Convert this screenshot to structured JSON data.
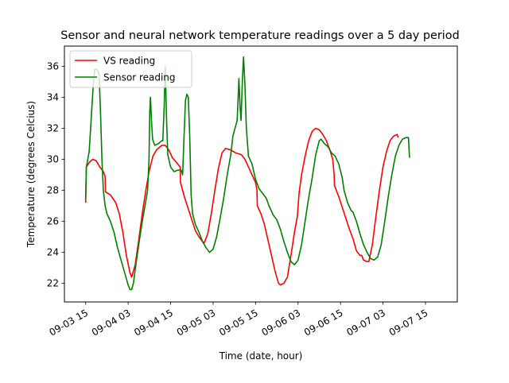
{
  "chart_data": {
    "type": "line",
    "title": "Sensor and neural network temperature readings over a 5 day period",
    "xlabel": "Time (date, hour)",
    "ylabel": "Temperature (degrees Celcius)",
    "x_unit": "hours",
    "xlim": [
      -6,
      105
    ],
    "ylim": [
      20.8,
      37.3
    ],
    "x_ticks": [
      {
        "value": 0,
        "label": "09-03 15"
      },
      {
        "value": 12,
        "label": "09-04 03"
      },
      {
        "value": 24,
        "label": "09-04 15"
      },
      {
        "value": 36,
        "label": "09-05 03"
      },
      {
        "value": 48,
        "label": "09-05 15"
      },
      {
        "value": 60,
        "label": "09-06 03"
      },
      {
        "value": 72,
        "label": "09-06 15"
      },
      {
        "value": 84,
        "label": "09-07 03"
      },
      {
        "value": 96,
        "label": "09-07 15"
      }
    ],
    "y_ticks": [
      22,
      24,
      26,
      28,
      30,
      32,
      34,
      36
    ],
    "grid": false,
    "legend_position": "top-left",
    "series": [
      {
        "name": "VS reading",
        "color": "#ff0000",
        "points": [
          [
            0.0,
            27.2
          ],
          [
            0.2,
            29.5
          ],
          [
            1.0,
            29.8
          ],
          [
            2.0,
            30.0
          ],
          [
            3.0,
            29.9
          ],
          [
            4.0,
            29.5
          ],
          [
            5.0,
            29.2
          ],
          [
            5.5,
            28.9
          ],
          [
            5.6,
            27.9
          ],
          [
            7.0,
            27.7
          ],
          [
            8.5,
            27.2
          ],
          [
            9.5,
            26.5
          ],
          [
            10.5,
            25.3
          ],
          [
            11.5,
            23.8
          ],
          [
            12.5,
            22.7
          ],
          [
            13.0,
            22.4
          ],
          [
            14.0,
            23.2
          ],
          [
            15.0,
            24.8
          ],
          [
            16.0,
            26.5
          ],
          [
            17.0,
            28.0
          ],
          [
            18.0,
            29.3
          ],
          [
            19.0,
            30.2
          ],
          [
            20.0,
            30.6
          ],
          [
            21.5,
            30.9
          ],
          [
            22.5,
            30.9
          ],
          [
            23.5,
            30.6
          ],
          [
            24.5,
            30.1
          ],
          [
            26.0,
            29.7
          ],
          [
            26.7,
            29.5
          ],
          [
            26.8,
            28.5
          ],
          [
            28.0,
            27.5
          ],
          [
            29.0,
            26.8
          ],
          [
            30.0,
            26.1
          ],
          [
            31.0,
            25.4
          ],
          [
            32.0,
            25.0
          ],
          [
            33.0,
            24.7
          ],
          [
            33.5,
            24.6
          ],
          [
            34.5,
            25.2
          ],
          [
            35.5,
            26.5
          ],
          [
            36.5,
            28.0
          ],
          [
            37.5,
            29.4
          ],
          [
            38.5,
            30.4
          ],
          [
            39.5,
            30.7
          ],
          [
            41.0,
            30.6
          ],
          [
            42.5,
            30.4
          ],
          [
            44.0,
            30.3
          ],
          [
            45.0,
            30.0
          ],
          [
            46.0,
            29.5
          ],
          [
            47.0,
            29.0
          ],
          [
            48.0,
            28.5
          ],
          [
            48.4,
            28.0
          ],
          [
            48.5,
            27.0
          ],
          [
            49.5,
            26.5
          ],
          [
            50.5,
            25.8
          ],
          [
            51.5,
            24.8
          ],
          [
            52.5,
            23.8
          ],
          [
            53.5,
            22.8
          ],
          [
            54.5,
            22.0
          ],
          [
            55.0,
            21.9
          ],
          [
            56.0,
            22.0
          ],
          [
            57.0,
            22.4
          ],
          [
            58.0,
            23.8
          ],
          [
            59.0,
            25.3
          ],
          [
            59.8,
            26.3
          ],
          [
            60.3,
            27.8
          ],
          [
            61.0,
            29.0
          ],
          [
            62.0,
            30.2
          ],
          [
            63.0,
            31.2
          ],
          [
            64.0,
            31.8
          ],
          [
            65.0,
            32.0
          ],
          [
            66.0,
            31.9
          ],
          [
            67.0,
            31.6
          ],
          [
            68.0,
            31.2
          ],
          [
            69.0,
            30.6
          ],
          [
            69.8,
            30.0
          ],
          [
            70.2,
            29.0
          ],
          [
            70.3,
            28.3
          ],
          [
            71.5,
            27.6
          ],
          [
            72.5,
            26.9
          ],
          [
            73.5,
            26.2
          ],
          [
            74.5,
            25.5
          ],
          [
            75.5,
            24.9
          ],
          [
            76.5,
            24.1
          ],
          [
            77.5,
            23.8
          ],
          [
            78.0,
            23.8
          ],
          [
            78.5,
            23.5
          ],
          [
            79.5,
            23.4
          ],
          [
            80.0,
            23.4
          ],
          [
            81.0,
            24.5
          ],
          [
            82.0,
            26.3
          ],
          [
            83.0,
            28.0
          ],
          [
            84.0,
            29.5
          ],
          [
            85.0,
            30.5
          ],
          [
            86.0,
            31.2
          ],
          [
            87.0,
            31.5
          ],
          [
            88.0,
            31.6
          ],
          [
            88.3,
            31.4
          ]
        ]
      },
      {
        "name": "Sensor reading",
        "color": "#008000",
        "points": [
          [
            0.0,
            27.4
          ],
          [
            0.2,
            29.5
          ],
          [
            1.0,
            30.5
          ],
          [
            1.8,
            33.5
          ],
          [
            2.2,
            35.0
          ],
          [
            2.6,
            35.8
          ],
          [
            3.2,
            35.8
          ],
          [
            3.8,
            35.5
          ],
          [
            4.2,
            33.0
          ],
          [
            4.6,
            30.0
          ],
          [
            5.0,
            28.0
          ],
          [
            5.5,
            27.0
          ],
          [
            6.0,
            26.5
          ],
          [
            7.0,
            26.0
          ],
          [
            8.0,
            25.3
          ],
          [
            9.0,
            24.3
          ],
          [
            10.0,
            23.5
          ],
          [
            11.0,
            22.7
          ],
          [
            12.0,
            21.9
          ],
          [
            12.5,
            21.6
          ],
          [
            13.0,
            21.6
          ],
          [
            13.5,
            22.0
          ],
          [
            14.0,
            22.9
          ],
          [
            15.0,
            24.5
          ],
          [
            16.0,
            26.0
          ],
          [
            17.0,
            27.3
          ],
          [
            17.5,
            28.0
          ],
          [
            17.9,
            30.0
          ],
          [
            18.1,
            33.0
          ],
          [
            18.3,
            34.0
          ],
          [
            18.6,
            32.5
          ],
          [
            18.9,
            31.3
          ],
          [
            19.5,
            30.9
          ],
          [
            20.5,
            31.0
          ],
          [
            21.5,
            31.2
          ],
          [
            21.8,
            31.2
          ],
          [
            22.2,
            33.5
          ],
          [
            22.5,
            36.0
          ],
          [
            22.8,
            33.0
          ],
          [
            23.2,
            30.3
          ],
          [
            24.0,
            29.5
          ],
          [
            25.0,
            29.2
          ],
          [
            26.0,
            29.3
          ],
          [
            27.0,
            29.3
          ],
          [
            27.4,
            29.0
          ],
          [
            27.8,
            31.5
          ],
          [
            28.2,
            33.8
          ],
          [
            28.6,
            34.2
          ],
          [
            29.0,
            34.0
          ],
          [
            29.4,
            31.5
          ],
          [
            29.8,
            27.7
          ],
          [
            30.2,
            26.5
          ],
          [
            31.0,
            25.8
          ],
          [
            32.0,
            25.3
          ],
          [
            33.0,
            24.7
          ],
          [
            34.0,
            24.3
          ],
          [
            35.0,
            24.0
          ],
          [
            36.0,
            24.2
          ],
          [
            37.0,
            25.0
          ],
          [
            38.0,
            26.2
          ],
          [
            39.0,
            27.5
          ],
          [
            40.0,
            29.0
          ],
          [
            41.0,
            30.3
          ],
          [
            41.6,
            31.5
          ],
          [
            42.2,
            32.0
          ],
          [
            42.8,
            32.5
          ],
          [
            43.0,
            33.5
          ],
          [
            43.3,
            35.2
          ],
          [
            43.6,
            33.5
          ],
          [
            43.9,
            32.5
          ],
          [
            44.3,
            35.2
          ],
          [
            44.6,
            36.6
          ],
          [
            45.0,
            34.8
          ],
          [
            45.4,
            32.0
          ],
          [
            46.0,
            30.2
          ],
          [
            47.0,
            29.7
          ],
          [
            48.0,
            28.7
          ],
          [
            49.0,
            28.1
          ],
          [
            50.0,
            27.8
          ],
          [
            51.0,
            27.5
          ],
          [
            51.8,
            27.0
          ],
          [
            53.0,
            26.4
          ],
          [
            54.0,
            26.1
          ],
          [
            55.0,
            25.5
          ],
          [
            56.0,
            24.7
          ],
          [
            57.0,
            24.0
          ],
          [
            58.0,
            23.4
          ],
          [
            59.0,
            23.2
          ],
          [
            60.0,
            23.5
          ],
          [
            61.0,
            24.5
          ],
          [
            62.0,
            26.0
          ],
          [
            63.0,
            27.5
          ],
          [
            64.0,
            28.8
          ],
          [
            65.0,
            30.3
          ],
          [
            66.0,
            31.2
          ],
          [
            66.5,
            31.3
          ],
          [
            67.5,
            31.0
          ],
          [
            68.5,
            30.8
          ],
          [
            69.5,
            30.4
          ],
          [
            70.5,
            30.2
          ],
          [
            71.5,
            29.7
          ],
          [
            72.5,
            28.8
          ],
          [
            73.0,
            28.0
          ],
          [
            74.0,
            27.2
          ],
          [
            75.0,
            26.7
          ],
          [
            75.5,
            26.6
          ],
          [
            76.5,
            26.0
          ],
          [
            77.5,
            25.2
          ],
          [
            78.5,
            24.5
          ],
          [
            79.5,
            24.0
          ],
          [
            80.5,
            23.6
          ],
          [
            81.5,
            23.5
          ],
          [
            82.5,
            23.7
          ],
          [
            83.5,
            24.5
          ],
          [
            84.5,
            26.0
          ],
          [
            85.5,
            27.6
          ],
          [
            86.5,
            29.0
          ],
          [
            87.5,
            30.2
          ],
          [
            88.5,
            30.9
          ],
          [
            89.5,
            31.3
          ],
          [
            90.5,
            31.4
          ],
          [
            91.2,
            31.4
          ],
          [
            91.5,
            30.1
          ]
        ]
      }
    ]
  }
}
